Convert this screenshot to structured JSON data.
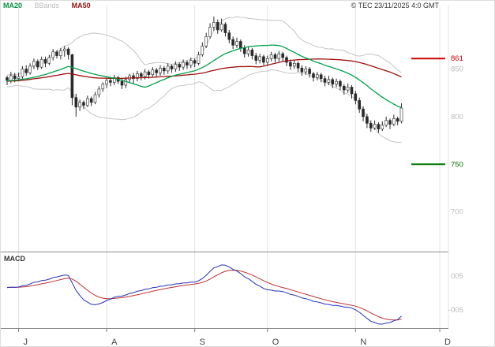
{
  "legend": {
    "items": [
      {
        "label": "MA20",
        "color": "#009140"
      },
      {
        "label": "BBands",
        "color": "#bdbdbd"
      },
      {
        "label": "MA50",
        "color": "#a01010"
      }
    ]
  },
  "copyright": {
    "text": "© TEC 23/11/2025 4:0 GMT"
  },
  "chart_data": {
    "type": "candlestick",
    "price_panel": {
      "ylim": [
        660,
        915
      ],
      "yticks": [
        850,
        800,
        700
      ],
      "levels": [
        {
          "value": 861,
          "label": "861",
          "role": "resistance",
          "color": "#cc0000"
        },
        {
          "value": 750,
          "label": "750",
          "role": "support",
          "color": "#007700"
        }
      ],
      "visible_from_index": 20,
      "ohlc": [
        [
          828,
          834,
          825,
          830
        ],
        [
          830,
          838,
          827,
          835
        ],
        [
          835,
          837,
          829,
          832
        ],
        [
          832,
          841,
          830,
          838
        ],
        [
          838,
          840,
          831,
          834
        ],
        [
          834,
          843,
          832,
          840
        ],
        [
          840,
          842,
          833,
          836
        ],
        [
          836,
          845,
          834,
          842
        ],
        [
          842,
          844,
          835,
          838
        ],
        [
          838,
          840,
          829,
          833
        ],
        [
          833,
          842,
          831,
          839
        ],
        [
          839,
          841,
          832,
          835
        ],
        [
          835,
          844,
          833,
          841
        ],
        [
          841,
          843,
          834,
          837
        ],
        [
          837,
          846,
          835,
          843
        ],
        [
          843,
          845,
          836,
          839
        ],
        [
          839,
          841,
          830,
          834
        ],
        [
          834,
          843,
          832,
          840
        ],
        [
          840,
          842,
          833,
          836
        ],
        [
          836,
          844,
          834,
          841
        ],
        [
          841,
          843,
          833,
          838
        ],
        [
          838,
          847,
          835,
          843
        ],
        [
          843,
          846,
          836,
          840
        ],
        [
          840,
          846,
          837,
          842
        ],
        [
          842,
          853,
          840,
          850
        ],
        [
          850,
          854,
          843,
          846
        ],
        [
          846,
          856,
          844,
          853
        ],
        [
          853,
          861,
          850,
          858
        ],
        [
          858,
          860,
          849,
          852
        ],
        [
          852,
          863,
          850,
          860
        ],
        [
          860,
          863,
          852,
          856
        ],
        [
          856,
          865,
          854,
          862
        ],
        [
          862,
          871,
          859,
          868
        ],
        [
          868,
          870,
          861,
          864
        ],
        [
          864,
          872,
          860,
          869
        ],
        [
          869,
          874,
          863,
          871
        ],
        [
          871,
          873,
          860,
          865
        ],
        [
          865,
          866,
          812,
          820
        ],
        [
          820,
          824,
          800,
          810
        ],
        [
          810,
          818,
          806,
          815
        ],
        [
          815,
          817,
          808,
          812
        ],
        [
          812,
          822,
          810,
          819
        ],
        [
          819,
          821,
          811,
          815
        ],
        [
          815,
          826,
          813,
          823
        ],
        [
          823,
          832,
          820,
          829
        ],
        [
          829,
          836,
          826,
          834
        ],
        [
          834,
          840,
          830,
          838
        ],
        [
          838,
          842,
          832,
          836
        ],
        [
          836,
          844,
          833,
          841
        ],
        [
          841,
          843,
          834,
          837
        ],
        [
          837,
          840,
          829,
          833
        ],
        [
          833,
          842,
          830,
          839
        ],
        [
          839,
          845,
          836,
          843
        ],
        [
          843,
          846,
          835,
          840
        ],
        [
          840,
          848,
          837,
          845
        ],
        [
          845,
          847,
          838,
          842
        ],
        [
          842,
          850,
          839,
          847
        ],
        [
          847,
          849,
          840,
          844
        ],
        [
          844,
          852,
          841,
          849
        ],
        [
          849,
          851,
          842,
          846
        ],
        [
          846,
          854,
          843,
          851
        ],
        [
          851,
          853,
          844,
          848
        ],
        [
          848,
          856,
          845,
          853
        ],
        [
          853,
          855,
          846,
          850
        ],
        [
          850,
          858,
          847,
          855
        ],
        [
          855,
          857,
          848,
          852
        ],
        [
          852,
          860,
          849,
          857
        ],
        [
          857,
          859,
          850,
          854
        ],
        [
          854,
          862,
          851,
          859
        ],
        [
          859,
          861,
          852,
          856
        ],
        [
          856,
          868,
          854,
          865
        ],
        [
          865,
          878,
          863,
          874
        ],
        [
          874,
          888,
          872,
          884
        ],
        [
          884,
          898,
          882,
          894
        ],
        [
          894,
          905,
          890,
          899
        ],
        [
          899,
          902,
          887,
          891
        ],
        [
          891,
          903,
          889,
          897
        ],
        [
          897,
          899,
          884,
          888
        ],
        [
          888,
          891,
          877,
          881
        ],
        [
          881,
          884,
          871,
          875
        ],
        [
          875,
          883,
          872,
          879
        ],
        [
          879,
          881,
          868,
          872
        ],
        [
          872,
          875,
          862,
          866
        ],
        [
          866,
          874,
          863,
          870
        ],
        [
          870,
          872,
          860,
          864
        ],
        [
          864,
          867,
          855,
          859
        ],
        [
          859,
          866,
          856,
          863
        ],
        [
          863,
          865,
          854,
          857
        ],
        [
          857,
          864,
          854,
          861
        ],
        [
          861,
          868,
          858,
          865
        ],
        [
          865,
          867,
          857,
          861
        ],
        [
          861,
          869,
          858,
          866
        ],
        [
          866,
          868,
          858,
          862
        ],
        [
          862,
          864,
          853,
          857
        ],
        [
          857,
          860,
          849,
          853
        ],
        [
          853,
          859,
          850,
          856
        ],
        [
          856,
          858,
          847,
          851
        ],
        [
          851,
          854,
          843,
          847
        ],
        [
          847,
          853,
          844,
          850
        ],
        [
          850,
          852,
          841,
          845
        ],
        [
          845,
          847,
          837,
          841
        ],
        [
          841,
          847,
          838,
          844
        ],
        [
          844,
          846,
          836,
          840
        ],
        [
          840,
          843,
          832,
          836
        ],
        [
          836,
          843,
          833,
          839
        ],
        [
          839,
          841,
          830,
          834
        ],
        [
          834,
          840,
          831,
          837
        ],
        [
          837,
          839,
          828,
          832
        ],
        [
          832,
          834,
          823,
          828
        ],
        [
          828,
          835,
          825,
          831
        ],
        [
          831,
          833,
          819,
          824
        ],
        [
          824,
          827,
          813,
          817
        ],
        [
          817,
          820,
          804,
          808
        ],
        [
          808,
          811,
          795,
          800
        ],
        [
          800,
          803,
          788,
          793
        ],
        [
          793,
          796,
          784,
          788
        ],
        [
          788,
          796,
          786,
          792
        ],
        [
          792,
          794,
          783,
          787
        ],
        [
          787,
          795,
          785,
          791
        ],
        [
          791,
          800,
          789,
          796
        ],
        [
          796,
          798,
          787,
          792
        ],
        [
          792,
          802,
          790,
          798
        ],
        [
          798,
          800,
          791,
          795
        ],
        [
          795,
          814,
          793,
          809
        ]
      ]
    },
    "indicators": {
      "ma20": {
        "period": 20,
        "color": "#00a14b"
      },
      "ma50": {
        "period": 50,
        "color": "#a01010"
      },
      "bbands": {
        "period": 20,
        "mult": 2,
        "color": "#c4c4c4"
      },
      "macd": {
        "fast": 12,
        "slow": 26,
        "signal": 9,
        "macd_color": "#2431b8",
        "signal_color": "#c03030"
      }
    },
    "macd_panel": {
      "label": "MACD",
      "yticks": [
        {
          "text": "005"
        },
        {
          "text": "-005"
        }
      ]
    },
    "x_axis": {
      "months": [
        {
          "label": "J",
          "index": 23
        },
        {
          "label": "A",
          "index": 46
        },
        {
          "label": "S",
          "index": 69
        },
        {
          "label": "O",
          "index": 88
        },
        {
          "label": "N",
          "index": 111
        },
        {
          "label": "D",
          "index": 133
        }
      ]
    },
    "candle_colors": {
      "up_fill": "#ffffff",
      "down_fill": "#2a2a2a",
      "stroke": "#2a2a2a"
    }
  }
}
